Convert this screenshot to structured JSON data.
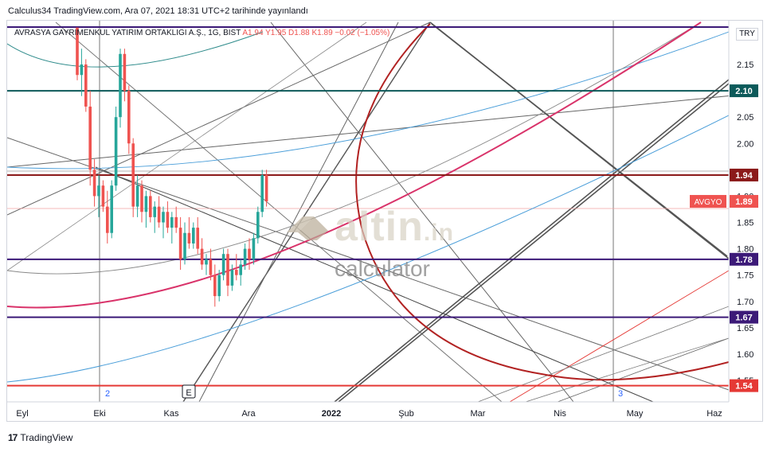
{
  "header": {
    "text": "Calculus34 TradingView.com, Ara 07, 2021 18:31 UTC+2 tarihinde yayınlandı"
  },
  "legend": {
    "symbol": "AVRASYA GAYRIMENKUL YATIRIM ORTAKLIGI A.Ş., 1G, BIST",
    "ohlc": "A1.94  Y1.95  D1.88  K1.89  −0.02 (−1.05%)"
  },
  "currency": "TRY",
  "watermark": {
    "brand": "altin",
    "suffix": ".in",
    "sub": "calculator"
  },
  "footer": {
    "logo": "17",
    "text": "TradingView"
  },
  "markers": {
    "wave2": "2",
    "wave3": "3",
    "event": "E"
  },
  "chart_data": {
    "type": "candlestick",
    "symbol": "AVGYO",
    "yticks": [
      2.15,
      2.1,
      2.05,
      2.0,
      1.9,
      1.85,
      1.8,
      1.75,
      1.7,
      1.65,
      1.6,
      1.55
    ],
    "ylim": [
      1.52,
      2.22
    ],
    "xticks": [
      "Eyl",
      "Eki",
      "Kas",
      "Ara",
      "2022",
      "Şub",
      "Mar",
      "Nis",
      "May",
      "Haz"
    ],
    "hlines": [
      {
        "label": "2.10",
        "value": 2.1,
        "color": "#0d5a5a"
      },
      {
        "label": "1.94",
        "value": 1.94,
        "color": "#8b1a1a"
      },
      {
        "label": "1.78",
        "value": 1.78,
        "color": "#3c1a78"
      },
      {
        "label": "1.67",
        "value": 1.67,
        "color": "#3c1a78"
      },
      {
        "label": "1.54",
        "value": 1.54,
        "color": "#e53935"
      }
    ],
    "top_line": {
      "value": 2.21,
      "color": "#3c1a78"
    },
    "last_price": {
      "label": "AVGYO",
      "value": "1.89",
      "color": "#ef5350"
    },
    "candles": [
      [
        2.22,
        2.22,
        2.12,
        2.13
      ],
      [
        2.13,
        2.18,
        2.09,
        2.15
      ],
      [
        2.15,
        2.16,
        2.06,
        2.07
      ],
      [
        2.07,
        2.1,
        1.92,
        1.95
      ],
      [
        1.95,
        1.97,
        1.88,
        1.9
      ],
      [
        1.9,
        1.94,
        1.86,
        1.92
      ],
      [
        1.92,
        1.93,
        1.87,
        1.88
      ],
      [
        1.88,
        1.91,
        1.81,
        1.83
      ],
      [
        1.83,
        1.93,
        1.82,
        1.92
      ],
      [
        1.92,
        2.07,
        1.91,
        2.05
      ],
      [
        2.05,
        2.18,
        2.03,
        2.17
      ],
      [
        2.17,
        2.18,
        2.08,
        2.1
      ],
      [
        2.1,
        2.11,
        1.98,
        2.0
      ],
      [
        2.0,
        2.01,
        1.86,
        1.88
      ],
      [
        1.88,
        1.94,
        1.86,
        1.92
      ],
      [
        1.92,
        1.93,
        1.85,
        1.87
      ],
      [
        1.87,
        1.91,
        1.84,
        1.9
      ],
      [
        1.9,
        1.91,
        1.85,
        1.86
      ],
      [
        1.86,
        1.89,
        1.83,
        1.88
      ],
      [
        1.88,
        1.9,
        1.84,
        1.85
      ],
      [
        1.85,
        1.88,
        1.82,
        1.87
      ],
      [
        1.87,
        1.89,
        1.83,
        1.84
      ],
      [
        1.84,
        1.87,
        1.81,
        1.86
      ],
      [
        1.86,
        1.88,
        1.83,
        1.84
      ],
      [
        1.84,
        1.86,
        1.76,
        1.78
      ],
      [
        1.78,
        1.85,
        1.77,
        1.83
      ],
      [
        1.83,
        1.86,
        1.8,
        1.81
      ],
      [
        1.81,
        1.85,
        1.8,
        1.84
      ],
      [
        1.84,
        1.86,
        1.79,
        1.8
      ],
      [
        1.8,
        1.82,
        1.76,
        1.77
      ],
      [
        1.77,
        1.79,
        1.75,
        1.78
      ],
      [
        1.78,
        1.8,
        1.74,
        1.75
      ],
      [
        1.75,
        1.77,
        1.69,
        1.71
      ],
      [
        1.71,
        1.76,
        1.7,
        1.75
      ],
      [
        1.75,
        1.8,
        1.74,
        1.79
      ],
      [
        1.79,
        1.8,
        1.71,
        1.73
      ],
      [
        1.73,
        1.77,
        1.72,
        1.76
      ],
      [
        1.76,
        1.79,
        1.74,
        1.75
      ],
      [
        1.75,
        1.78,
        1.73,
        1.77
      ],
      [
        1.77,
        1.81,
        1.76,
        1.8
      ],
      [
        1.8,
        1.82,
        1.76,
        1.78
      ],
      [
        1.78,
        1.83,
        1.77,
        1.82
      ],
      [
        1.82,
        1.88,
        1.81,
        1.87
      ],
      [
        1.87,
        1.95,
        1.86,
        1.94
      ],
      [
        1.94,
        1.95,
        1.88,
        1.89
      ]
    ]
  }
}
